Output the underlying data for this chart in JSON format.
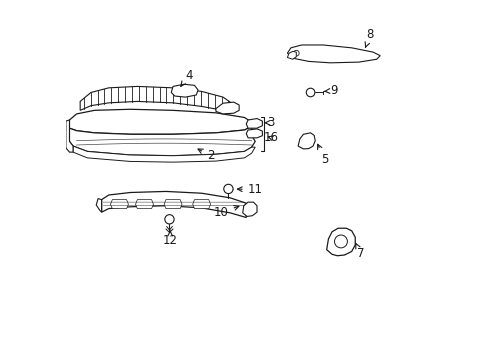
{
  "bg_color": "#ffffff",
  "line_color": "#1a1a1a",
  "figsize": [
    4.89,
    3.6
  ],
  "dpi": 100,
  "labels": {
    "2": [
      0.395,
      0.575,
      0.345,
      0.595
    ],
    "3": [
      0.535,
      0.655,
      0.46,
      0.66
    ],
    "4": [
      0.34,
      0.795,
      0.31,
      0.765
    ],
    "5": [
      0.73,
      0.545,
      0.715,
      0.575
    ],
    "7": [
      0.73,
      0.265,
      0.725,
      0.29
    ],
    "8": [
      0.84,
      0.9,
      0.825,
      0.86
    ],
    "9": [
      0.745,
      0.755,
      0.71,
      0.765
    ],
    "10": [
      0.41,
      0.425,
      0.375,
      0.44
    ],
    "11": [
      0.54,
      0.475,
      0.495,
      0.475
    ],
    "12": [
      0.305,
      0.335,
      0.305,
      0.37
    ],
    "16": [
      0.545,
      0.62,
      0.51,
      0.64
    ]
  }
}
